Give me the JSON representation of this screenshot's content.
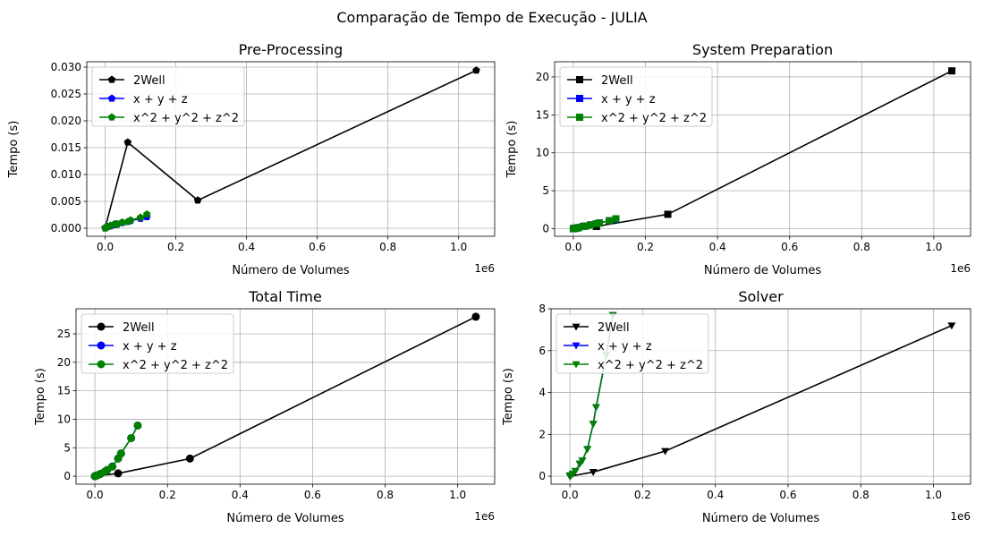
{
  "figure": {
    "suptitle": "Comparação de Tempo de Execução - JULIA"
  },
  "colors": {
    "2Well": "#000000",
    "x + y + z": "#0000ff",
    "x^2 + y^2 + z^2": "#008000"
  },
  "chart_data": [
    {
      "type": "line",
      "title": "Pre-Processing",
      "xlabel": "Número de Volumes",
      "ylabel": "Tempo (s)",
      "x_offset_label": "1e6",
      "xlim": [
        -52000,
        1102000
      ],
      "ylim": [
        -0.0015,
        0.031
      ],
      "xticks": [
        0,
        0.2,
        0.4,
        0.6,
        0.8,
        1.0
      ],
      "xtick_labels": [
        "0.0",
        "0.2",
        "0.4",
        "0.6",
        "0.8",
        "1.0"
      ],
      "yticks": [
        0,
        0.005,
        0.01,
        0.015,
        0.02,
        0.025,
        0.03
      ],
      "ytick_labels": [
        "0.000",
        "0.005",
        "0.010",
        "0.015",
        "0.020",
        "0.025",
        "0.030"
      ],
      "grid": true,
      "legend": "upper-left",
      "marker": "pentagon",
      "series": [
        {
          "name": "2Well",
          "x": [
            0,
            64000,
            262000,
            1050000
          ],
          "y": [
            0.0001,
            0.016,
            0.0052,
            0.0294
          ]
        },
        {
          "name": "x + y + z",
          "x": [
            0,
            1000,
            3000,
            8000,
            15000,
            27000,
            34000,
            48000,
            64000,
            72000,
            100000,
            118000
          ],
          "y": [
            0,
            0.0001,
            0.0002,
            0.0003,
            0.0004,
            0.0006,
            0.0008,
            0.001,
            0.0012,
            0.0014,
            0.0018,
            0.0021
          ]
        },
        {
          "name": "x^2 + y^2 + z^2",
          "x": [
            0,
            1000,
            3000,
            8000,
            15000,
            27000,
            34000,
            48000,
            64000,
            72000,
            100000,
            118000
          ],
          "y": [
            0,
            0.0001,
            0.0002,
            0.0003,
            0.0005,
            0.0008,
            0.0007,
            0.0011,
            0.0012,
            0.0015,
            0.002,
            0.0026
          ]
        }
      ]
    },
    {
      "type": "line",
      "title": "System Preparation",
      "xlabel": "Número de Volumes",
      "ylabel": "Tempo (s)",
      "x_offset_label": "1e6",
      "xlim": [
        -52000,
        1102000
      ],
      "ylim": [
        -1.0,
        22.0
      ],
      "xticks": [
        0,
        0.2,
        0.4,
        0.6,
        0.8,
        1.0
      ],
      "xtick_labels": [
        "0.0",
        "0.2",
        "0.4",
        "0.6",
        "0.8",
        "1.0"
      ],
      "yticks": [
        0,
        5,
        10,
        15,
        20
      ],
      "ytick_labels": [
        "0",
        "5",
        "10",
        "15",
        "20"
      ],
      "grid": true,
      "legend": "upper-left",
      "marker": "square",
      "series": [
        {
          "name": "2Well",
          "x": [
            0,
            64000,
            262000,
            1050000
          ],
          "y": [
            0,
            0.3,
            1.9,
            20.8
          ]
        },
        {
          "name": "x + y + z",
          "x": [
            0,
            1000,
            3000,
            8000,
            15000,
            27000,
            34000,
            48000,
            64000,
            72000,
            100000,
            118000
          ],
          "y": [
            0,
            0.01,
            0.03,
            0.08,
            0.15,
            0.3,
            0.35,
            0.5,
            0.65,
            0.75,
            1.05,
            1.25
          ]
        },
        {
          "name": "x^2 + y^2 + z^2",
          "x": [
            0,
            1000,
            3000,
            8000,
            15000,
            27000,
            34000,
            48000,
            64000,
            72000,
            100000,
            118000
          ],
          "y": [
            0,
            0.01,
            0.03,
            0.08,
            0.15,
            0.3,
            0.35,
            0.5,
            0.65,
            0.75,
            1.05,
            1.3
          ]
        }
      ]
    },
    {
      "type": "line",
      "title": "Total Time",
      "xlabel": "Número de Volumes",
      "ylabel": "Tempo (s)",
      "x_offset_label": "1e6",
      "xlim": [
        -52000,
        1102000
      ],
      "ylim": [
        -1.4,
        29.4
      ],
      "xticks": [
        0,
        0.2,
        0.4,
        0.6,
        0.8,
        1.0
      ],
      "xtick_labels": [
        "0.0",
        "0.2",
        "0.4",
        "0.6",
        "0.8",
        "1.0"
      ],
      "yticks": [
        0,
        5,
        10,
        15,
        20,
        25
      ],
      "ytick_labels": [
        "0",
        "5",
        "10",
        "15",
        "20",
        "25"
      ],
      "grid": true,
      "legend": "upper-left",
      "marker": "circle",
      "series": [
        {
          "name": "2Well",
          "x": [
            0,
            64000,
            262000,
            1050000
          ],
          "y": [
            0,
            0.5,
            3.1,
            28.0
          ]
        },
        {
          "name": "x + y + z",
          "x": [
            0,
            1000,
            3000,
            8000,
            15000,
            27000,
            34000,
            48000,
            64000,
            72000,
            100000,
            118000
          ],
          "y": [
            0,
            0.05,
            0.1,
            0.2,
            0.4,
            0.8,
            1.1,
            1.7,
            3.1,
            4.0,
            6.7,
            8.9
          ]
        },
        {
          "name": "x^2 + y^2 + z^2",
          "x": [
            0,
            1000,
            3000,
            8000,
            15000,
            27000,
            34000,
            48000,
            64000,
            72000,
            100000,
            118000
          ],
          "y": [
            0,
            0.05,
            0.1,
            0.2,
            0.4,
            0.8,
            1.1,
            1.7,
            3.1,
            4.0,
            6.7,
            8.9
          ]
        }
      ]
    },
    {
      "type": "line",
      "title": "Solver",
      "xlabel": "Número de Volumes",
      "ylabel": "Tempo (s)",
      "x_offset_label": "1e6",
      "xlim": [
        -52000,
        1102000
      ],
      "ylim": [
        -0.38,
        8.0
      ],
      "xticks": [
        0,
        0.2,
        0.4,
        0.6,
        0.8,
        1.0
      ],
      "xtick_labels": [
        "0.0",
        "0.2",
        "0.4",
        "0.6",
        "0.8",
        "1.0"
      ],
      "yticks": [
        0,
        2,
        4,
        6,
        8
      ],
      "ytick_labels": [
        "0",
        "2",
        "4",
        "6",
        "8"
      ],
      "grid": true,
      "legend": "upper-left",
      "marker": "triangle-down",
      "series": [
        {
          "name": "2Well",
          "x": [
            0,
            64000,
            262000,
            1050000
          ],
          "y": [
            0,
            0.2,
            1.2,
            7.2
          ]
        },
        {
          "name": "x + y + z",
          "x": [
            0,
            1000,
            3000,
            8000,
            15000,
            27000,
            34000,
            48000,
            64000,
            72000,
            100000,
            118000
          ],
          "y": [
            0,
            0.02,
            0.05,
            0.12,
            0.25,
            0.6,
            0.75,
            1.3,
            2.5,
            3.3,
            5.8,
            7.7
          ]
        },
        {
          "name": "x^2 + y^2 + z^2",
          "x": [
            0,
            1000,
            3000,
            8000,
            15000,
            27000,
            34000,
            48000,
            64000,
            72000,
            100000,
            118000
          ],
          "y": [
            0,
            0.02,
            0.05,
            0.12,
            0.25,
            0.6,
            0.75,
            1.3,
            2.5,
            3.3,
            5.8,
            7.7
          ]
        }
      ]
    }
  ]
}
